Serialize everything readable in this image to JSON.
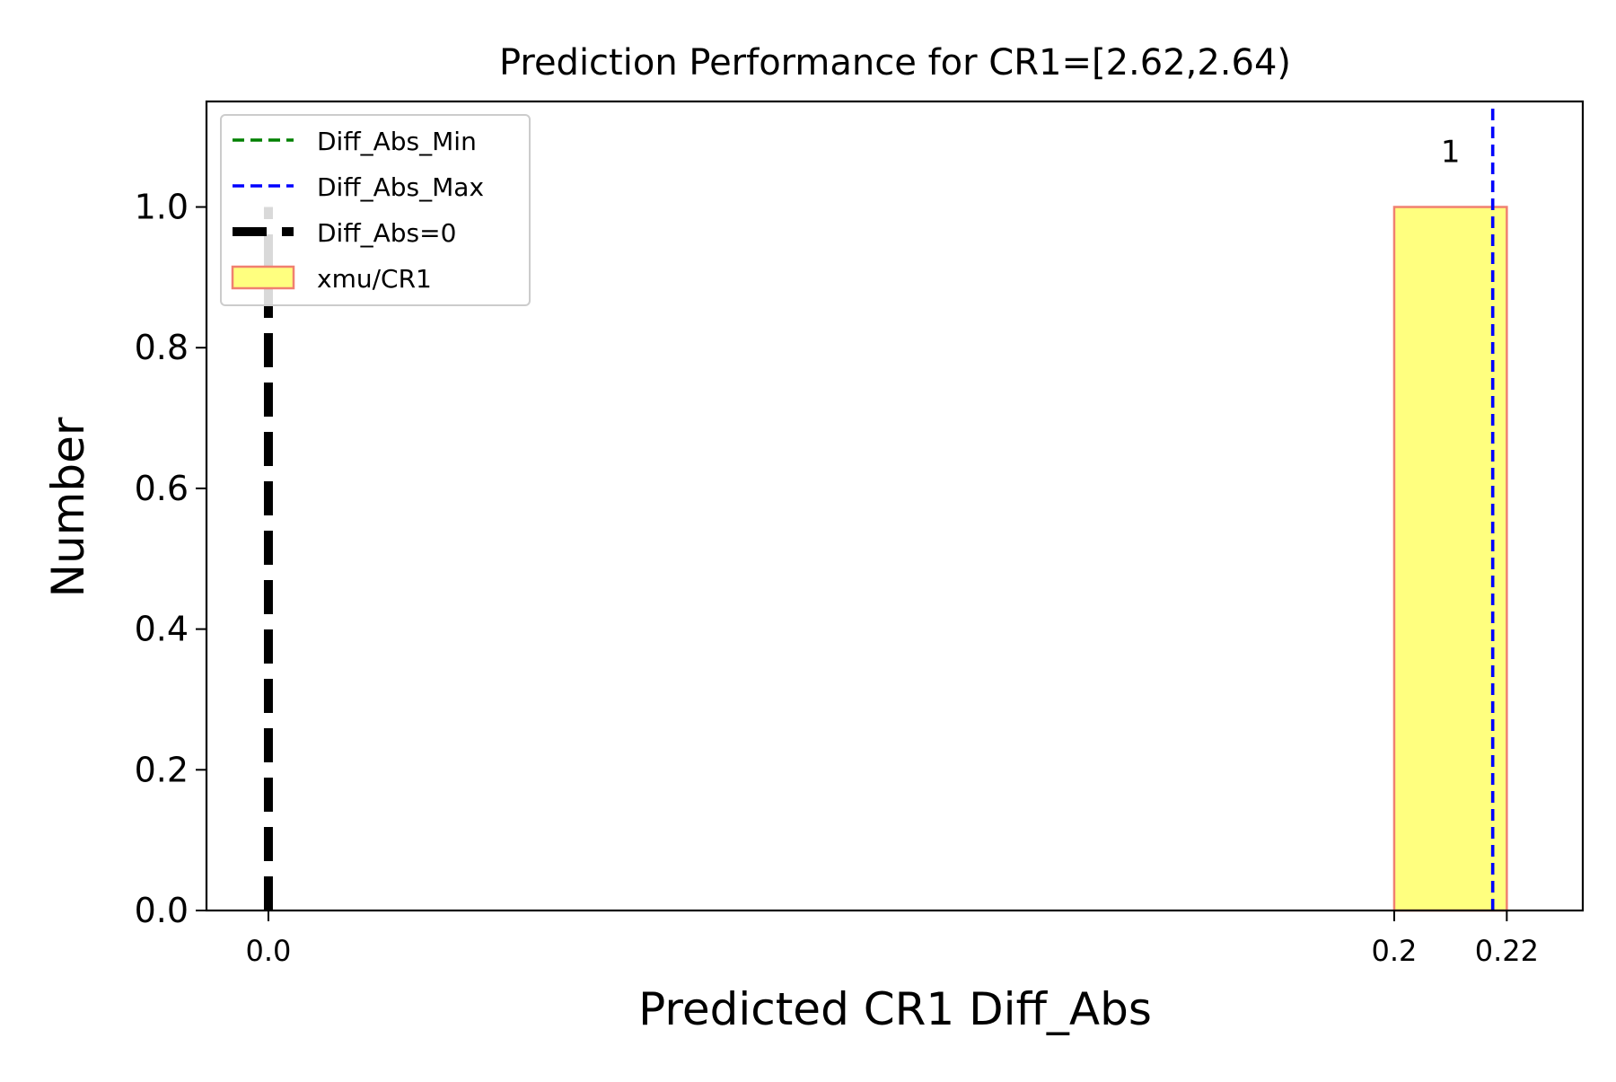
{
  "chart_data": {
    "type": "bar",
    "title": "Prediction Performance for CR1=[2.62,2.64)",
    "xlabel": "Predicted CR1 Diff_Abs",
    "ylabel": "Number",
    "xlim": [
      -0.011,
      0.2335
    ],
    "ylim": [
      0,
      1.15
    ],
    "xticks": [
      {
        "value": 0.0,
        "label": "0.0"
      },
      {
        "value": 0.2,
        "label": "0.2"
      },
      {
        "value": 0.22,
        "label": "0.22"
      }
    ],
    "yticks": [
      {
        "value": 0.0,
        "label": "0.0"
      },
      {
        "value": 0.2,
        "label": "0.2"
      },
      {
        "value": 0.4,
        "label": "0.4"
      },
      {
        "value": 0.6,
        "label": "0.6"
      },
      {
        "value": 0.8,
        "label": "0.8"
      },
      {
        "value": 1.0,
        "label": "1.0"
      }
    ],
    "bars": [
      {
        "x_start": 0.2,
        "x_end": 0.22,
        "value": 1,
        "label": "1"
      }
    ],
    "vlines": [
      {
        "name": "Diff_Abs_Min",
        "x": 0.2175,
        "color": "#008000",
        "style": "dashed"
      },
      {
        "name": "Diff_Abs_Max",
        "x": 0.2175,
        "color": "#0000ff",
        "style": "dashed"
      },
      {
        "name": "Diff_Abs=0",
        "x": 0.0,
        "ymax": 1.0,
        "color": "#000000",
        "style": "dashed-thick"
      }
    ],
    "series_bar": {
      "name": "xmu/CR1",
      "fill": "#ffff7f",
      "edge": "#f08070"
    },
    "legend": {
      "placement": "top-left",
      "entries": [
        "Diff_Abs_Min",
        "Diff_Abs_Max",
        "Diff_Abs=0",
        "xmu/CR1"
      ]
    },
    "grid": false
  }
}
